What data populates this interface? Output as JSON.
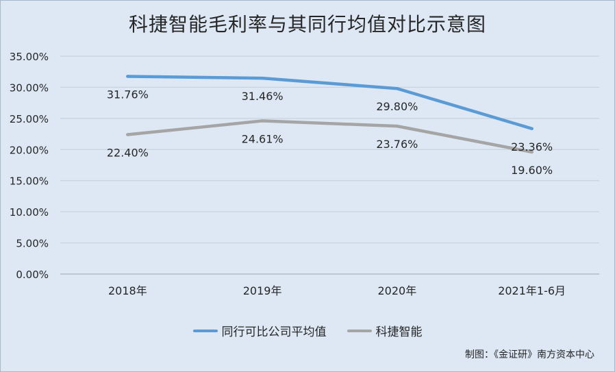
{
  "chart_data": {
    "type": "line",
    "title": "科捷智能毛利率与其同行均值对比示意图",
    "categories": [
      "2018年",
      "2019年",
      "2020年",
      "2021年1-6月"
    ],
    "ylim": [
      0,
      35
    ],
    "yticks": [
      "0.00%",
      "5.00%",
      "10.00%",
      "15.00%",
      "20.00%",
      "25.00%",
      "30.00%",
      "35.00%"
    ],
    "grid": true,
    "legend_position": "bottom",
    "series": [
      {
        "name": "同行可比公司平均值",
        "color": "#5b9bd5",
        "values": [
          31.76,
          31.46,
          29.8,
          23.36
        ],
        "labels": [
          "31.76%",
          "31.46%",
          "29.80%",
          "23.36%"
        ]
      },
      {
        "name": "科捷智能",
        "color": "#a5a5a5",
        "values": [
          22.4,
          24.61,
          23.76,
          19.6
        ],
        "labels": [
          "22.40%",
          "24.61%",
          "23.76%",
          "19.60%"
        ]
      }
    ],
    "source": "制图：《金证研》南方资本中心"
  }
}
